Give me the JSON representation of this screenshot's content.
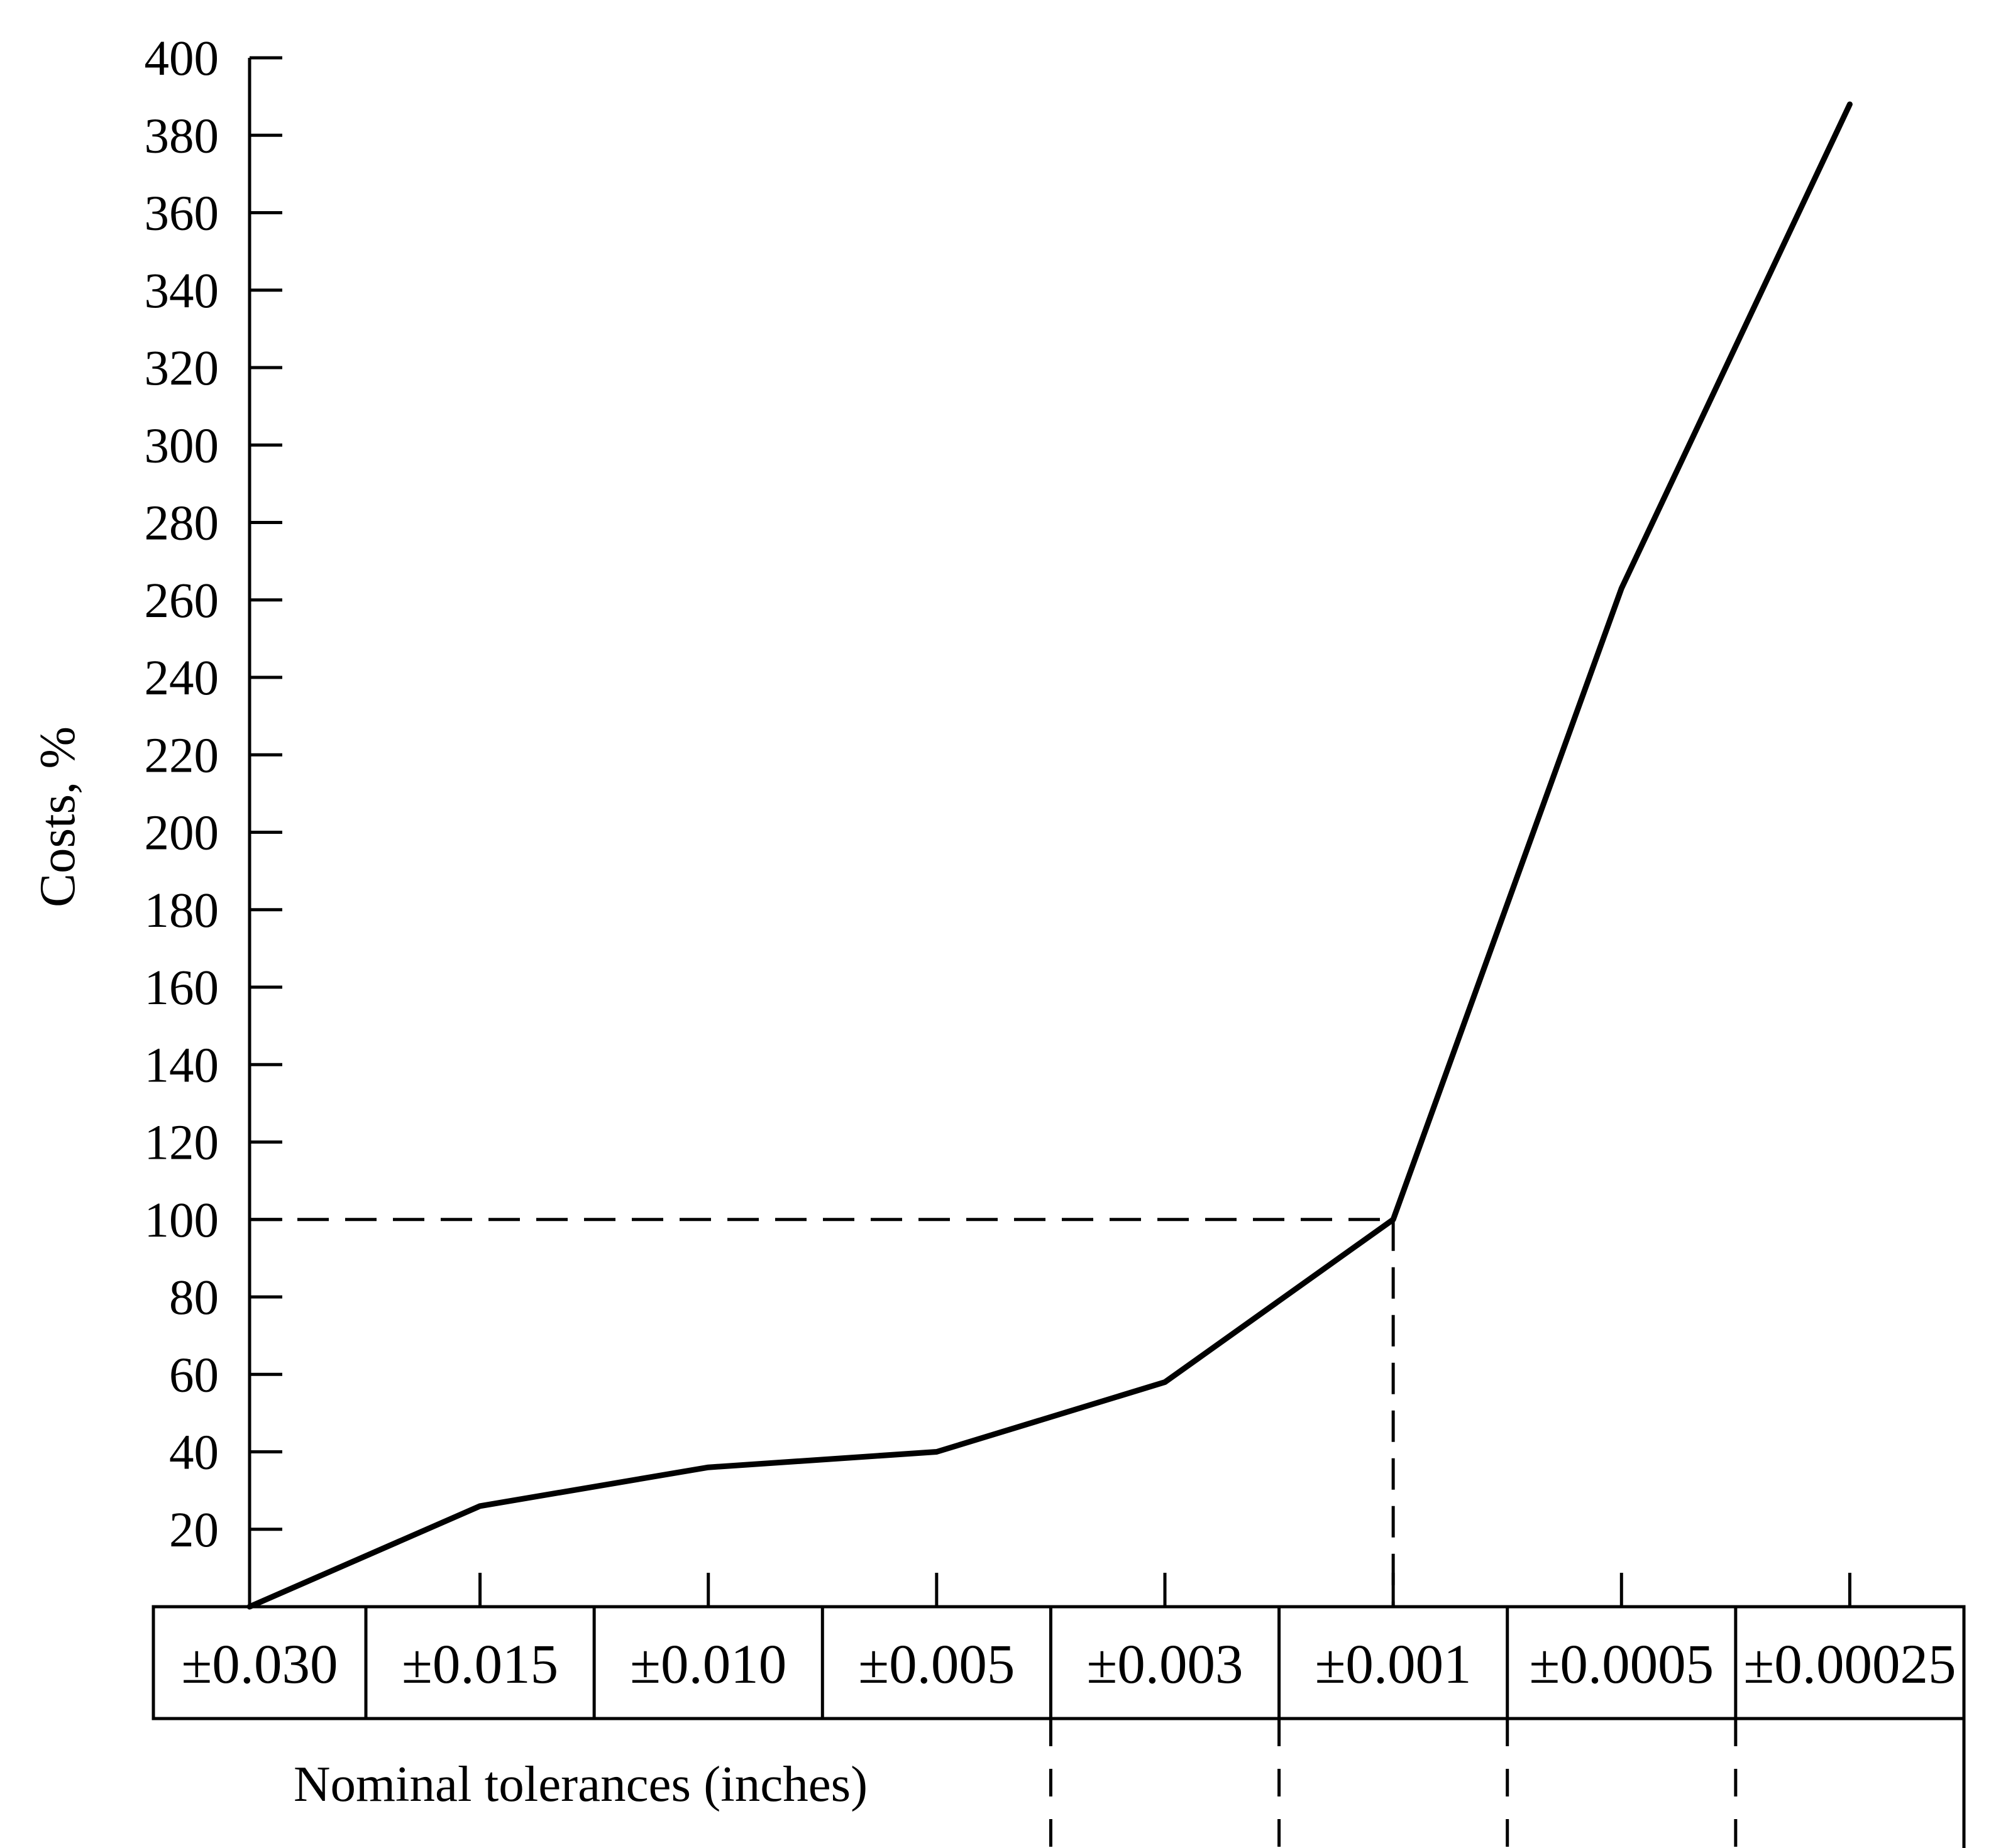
{
  "chart_data": {
    "type": "line",
    "title": "",
    "xlabel": "Nominal tolerances (inches)",
    "ylabel": "Costs, %",
    "ylim": [
      0,
      400
    ],
    "yticks": [
      20,
      40,
      60,
      80,
      100,
      120,
      140,
      160,
      180,
      200,
      220,
      240,
      260,
      280,
      300,
      320,
      340,
      360,
      380,
      400
    ],
    "categories": [
      "±0.030",
      "±0.015",
      "±0.010",
      "±0.005",
      "±0.003",
      "±0.001",
      "±0.0005",
      "±0.00025"
    ],
    "values": [
      0,
      26,
      36,
      40,
      58,
      100,
      263,
      388
    ],
    "reference": {
      "value": 100,
      "category": "±0.001",
      "style": "dashed"
    },
    "grid": false,
    "legend": "none",
    "line_color": "#000000"
  }
}
